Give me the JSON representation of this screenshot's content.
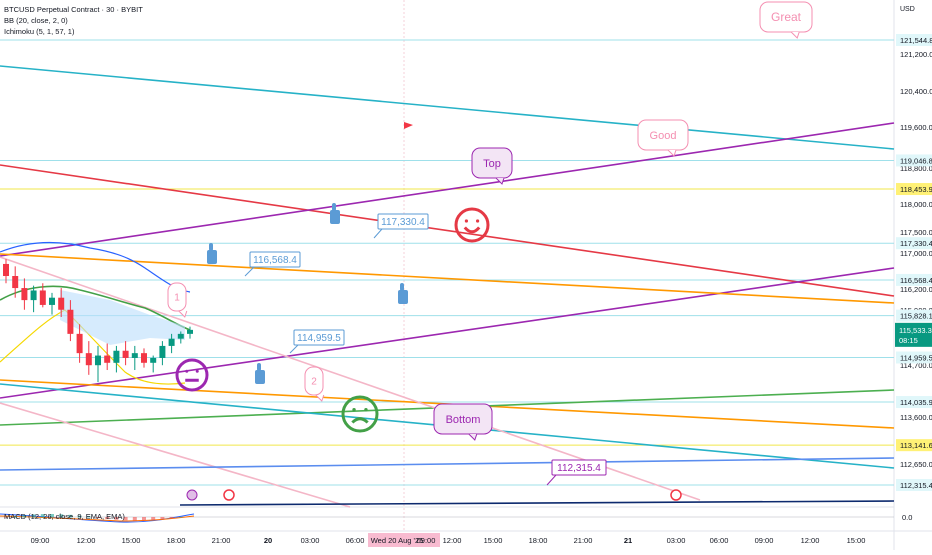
{
  "legend": {
    "symbol": "BTCUSD Perpetual Contract · 30 · BYBIT",
    "bb": "BB (20, close, 2, 0)",
    "ichimoku": "Ichimoku (5, 1, 57, 1)"
  },
  "currency": "USD",
  "macd_label": "MACD (12, 26, close, 9, EMA, EMA)",
  "last_price": {
    "value": "115,533.3",
    "countdown": "08:15",
    "color": "#089981"
  },
  "chart_data": {
    "type": "line",
    "ylim": [
      111500,
      122300
    ],
    "price_scale_ticks": [
      "121,200.0",
      "120,400.0",
      "119,600.0",
      "118,800.0",
      "118,000.0",
      "117,500.0",
      "117,000.0",
      "116,200.0",
      "115,900.0",
      "115,200.0",
      "114,700.0",
      "113,600.0",
      "112,650.0"
    ],
    "horizontal_levels": [
      {
        "value": 121544.8,
        "label": "121,544.8",
        "color": "#d1f1f6"
      },
      {
        "value": 119046.8,
        "label": "119,046.8",
        "color": "#d1f1f6"
      },
      {
        "value": 118453.9,
        "label": "118,453.9",
        "color": "#f7f08a",
        "highlight": true
      },
      {
        "value": 117330.4,
        "label": "117,330.4",
        "color": "#d1f1f6"
      },
      {
        "value": 116568.4,
        "label": "116,568.4",
        "color": "#d1f1f6"
      },
      {
        "value": 115828.1,
        "label": "115,828.1",
        "color": "#d1f1f6"
      },
      {
        "value": 114959.5,
        "label": "114,959.5",
        "color": "#d1f1f6"
      },
      {
        "value": 114035.9,
        "label": "114,035.9",
        "color": "#d1f1f6"
      },
      {
        "value": 113141.6,
        "label": "113,141.6",
        "color": "#f7f08a",
        "highlight": true
      },
      {
        "value": 112315.4,
        "label": "112,315.4",
        "color": "#d1f1f6"
      }
    ],
    "x_ticks": [
      "09:00",
      "12:00",
      "15:00",
      "18:00",
      "21:00",
      "20",
      "03:00",
      "06:00",
      "Wed 20 Aug '25",
      "09:00",
      "12:00",
      "15:00",
      "18:00",
      "21:00",
      "21",
      "03:00",
      "06:00",
      "09:00",
      "12:00",
      "15:00"
    ],
    "macd_zero_label": "0.0",
    "candles": [
      {
        "o": 116900,
        "h": 117000,
        "l": 116500,
        "c": 116650
      },
      {
        "o": 116650,
        "h": 116850,
        "l": 116200,
        "c": 116400
      },
      {
        "o": 116400,
        "h": 116600,
        "l": 115950,
        "c": 116150
      },
      {
        "o": 116150,
        "h": 116450,
        "l": 115900,
        "c": 116350
      },
      {
        "o": 116350,
        "h": 116500,
        "l": 116000,
        "c": 116050
      },
      {
        "o": 116050,
        "h": 116300,
        "l": 115850,
        "c": 116200
      },
      {
        "o": 116200,
        "h": 116400,
        "l": 115800,
        "c": 115950
      },
      {
        "o": 115950,
        "h": 116150,
        "l": 115300,
        "c": 115450
      },
      {
        "o": 115450,
        "h": 115650,
        "l": 114850,
        "c": 115050
      },
      {
        "o": 115050,
        "h": 115300,
        "l": 114600,
        "c": 114800
      },
      {
        "o": 114800,
        "h": 115200,
        "l": 114450,
        "c": 115000
      },
      {
        "o": 115000,
        "h": 115250,
        "l": 114700,
        "c": 114850
      },
      {
        "o": 114850,
        "h": 115200,
        "l": 114650,
        "c": 115100
      },
      {
        "o": 115100,
        "h": 115300,
        "l": 114800,
        "c": 114950
      },
      {
        "o": 114950,
        "h": 115200,
        "l": 114700,
        "c": 115050
      },
      {
        "o": 115050,
        "h": 115150,
        "l": 114750,
        "c": 114850
      },
      {
        "o": 114850,
        "h": 115000,
        "l": 114650,
        "c": 114950
      },
      {
        "o": 114950,
        "h": 115300,
        "l": 114800,
        "c": 115200
      },
      {
        "o": 115200,
        "h": 115450,
        "l": 115050,
        "c": 115350
      },
      {
        "o": 115350,
        "h": 115500,
        "l": 115250,
        "c": 115450
      },
      {
        "o": 115450,
        "h": 115600,
        "l": 115350,
        "c": 115533
      }
    ],
    "annotations": {
      "price_callouts": [
        "116,568.4",
        "117,330.4",
        "114,959.5",
        "112,315.4"
      ],
      "notes": [
        "Great",
        "Good",
        "Top",
        "Bottom",
        "1",
        "2"
      ]
    }
  }
}
